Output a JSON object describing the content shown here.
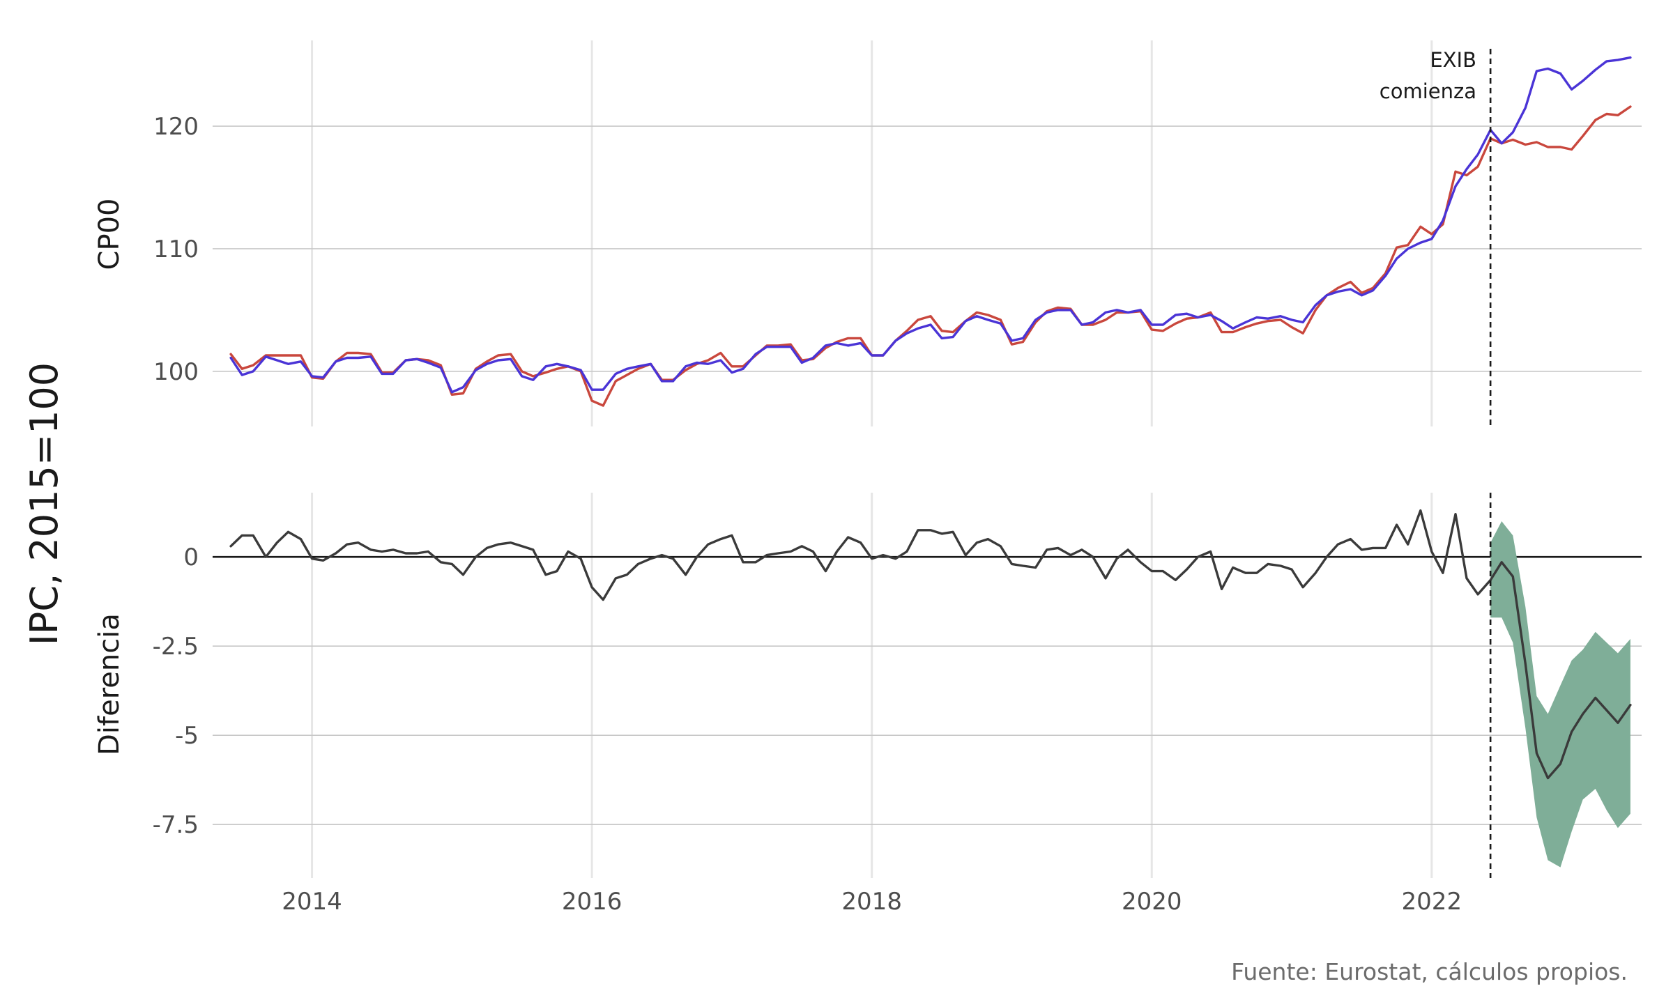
{
  "chart_data": {
    "type": "line",
    "ylabel": "IPC, 2015=100",
    "caption": "Fuente: Eurostat, cálculos propios.",
    "x_ticks": [
      2014,
      2016,
      2018,
      2020,
      2022
    ],
    "xlim": [
      2013.29,
      2023.5
    ],
    "event": {
      "x": 2022.42,
      "label_lines": [
        "EXIB",
        "comienza"
      ]
    },
    "colors": {
      "serie_roja": "#c9473d",
      "serie_azul": "#4a34d6",
      "diferencia": "#3a3a3a",
      "banda": "#7fae98"
    },
    "panels": [
      {
        "name": "top",
        "ylabel": "CP00",
        "ylim": [
          95.5,
          127
        ],
        "y_ticks": [
          100,
          110,
          120
        ],
        "y_tick_labels": [
          "100",
          "110",
          "120"
        ],
        "series": [
          {
            "color": "#c9473d",
            "x": [
              2013.42,
              2013.5,
              2013.58,
              2013.67,
              2013.75,
              2013.83,
              2013.92,
              2014.0,
              2014.08,
              2014.17,
              2014.25,
              2014.33,
              2014.42,
              2014.5,
              2014.58,
              2014.67,
              2014.75,
              2014.83,
              2014.92,
              2015.0,
              2015.08,
              2015.17,
              2015.25,
              2015.33,
              2015.42,
              2015.5,
              2015.58,
              2015.67,
              2015.75,
              2015.83,
              2015.92,
              2016.0,
              2016.08,
              2016.17,
              2016.25,
              2016.33,
              2016.42,
              2016.5,
              2016.58,
              2016.67,
              2016.75,
              2016.83,
              2016.92,
              2017.0,
              2017.08,
              2017.17,
              2017.25,
              2017.33,
              2017.42,
              2017.5,
              2017.58,
              2017.67,
              2017.75,
              2017.83,
              2017.92,
              2018.0,
              2018.08,
              2018.17,
              2018.25,
              2018.33,
              2018.42,
              2018.5,
              2018.58,
              2018.67,
              2018.75,
              2018.83,
              2018.92,
              2019.0,
              2019.08,
              2019.17,
              2019.25,
              2019.33,
              2019.42,
              2019.5,
              2019.58,
              2019.67,
              2019.75,
              2019.83,
              2019.92,
              2020.0,
              2020.08,
              2020.17,
              2020.25,
              2020.33,
              2020.42,
              2020.5,
              2020.58,
              2020.67,
              2020.75,
              2020.83,
              2020.92,
              2021.0,
              2021.08,
              2021.17,
              2021.25,
              2021.33,
              2021.42,
              2021.5,
              2021.58,
              2021.67,
              2021.75,
              2021.83,
              2021.92,
              2022.0,
              2022.08,
              2022.17,
              2022.25,
              2022.33,
              2022.42,
              2022.5,
              2022.58,
              2022.67,
              2022.75,
              2022.83,
              2022.92,
              2023.0,
              2023.08,
              2023.17,
              2023.25,
              2023.33,
              2023.42
            ],
            "values": [
              101.4,
              100.2,
              100.5,
              101.3,
              101.3,
              101.3,
              101.3,
              99.5,
              99.4,
              100.8,
              101.5,
              101.5,
              101.4,
              99.9,
              99.9,
              100.9,
              101.0,
              100.9,
              100.5,
              98.1,
              98.2,
              100.2,
              100.8,
              101.3,
              101.4,
              100.0,
              99.6,
              99.9,
              100.2,
              100.4,
              100.0,
              97.6,
              97.2,
              99.2,
              99.7,
              100.2,
              100.6,
              99.3,
              99.3,
              100.1,
              100.6,
              100.9,
              101.5,
              100.4,
              100.4,
              101.3,
              102.1,
              102.1,
              102.2,
              100.9,
              101.0,
              101.9,
              102.4,
              102.7,
              102.7,
              101.3,
              101.3,
              102.5,
              103.3,
              104.2,
              104.5,
              103.3,
              103.2,
              104.1,
              104.8,
              104.6,
              104.2,
              102.2,
              102.4,
              104.0,
              104.9,
              105.2,
              105.1,
              103.8,
              103.8,
              104.2,
              104.8,
              104.8,
              104.9,
              103.4,
              103.3,
              103.9,
              104.3,
              104.4,
              104.8,
              103.2,
              103.2,
              103.6,
              103.9,
              104.1,
              104.2,
              103.6,
              103.1,
              105.0,
              106.2,
              106.8,
              107.3,
              106.4,
              106.8,
              108.0,
              110.1,
              110.3,
              111.8,
              111.2,
              112.0,
              116.3,
              116.0,
              116.7,
              119.0,
              118.6,
              118.9,
              118.5,
              118.7,
              118.3,
              118.3,
              118.1,
              119.2,
              120.5,
              121.0,
              120.9,
              121.6
            ]
          },
          {
            "color": "#4a34d6",
            "x": [
              2013.42,
              2013.5,
              2013.58,
              2013.67,
              2013.75,
              2013.83,
              2013.92,
              2014.0,
              2014.08,
              2014.17,
              2014.25,
              2014.33,
              2014.42,
              2014.5,
              2014.58,
              2014.67,
              2014.75,
              2014.83,
              2014.92,
              2015.0,
              2015.08,
              2015.17,
              2015.25,
              2015.33,
              2015.42,
              2015.5,
              2015.58,
              2015.67,
              2015.75,
              2015.83,
              2015.92,
              2016.0,
              2016.08,
              2016.17,
              2016.25,
              2016.33,
              2016.42,
              2016.5,
              2016.58,
              2016.67,
              2016.75,
              2016.83,
              2016.92,
              2017.0,
              2017.08,
              2017.17,
              2017.25,
              2017.33,
              2017.42,
              2017.5,
              2017.58,
              2017.67,
              2017.75,
              2017.83,
              2017.92,
              2018.0,
              2018.08,
              2018.17,
              2018.25,
              2018.33,
              2018.42,
              2018.5,
              2018.58,
              2018.67,
              2018.75,
              2018.83,
              2018.92,
              2019.0,
              2019.08,
              2019.17,
              2019.25,
              2019.33,
              2019.42,
              2019.5,
              2019.58,
              2019.67,
              2019.75,
              2019.83,
              2019.92,
              2020.0,
              2020.08,
              2020.17,
              2020.25,
              2020.33,
              2020.42,
              2020.5,
              2020.58,
              2020.67,
              2020.75,
              2020.83,
              2020.92,
              2021.0,
              2021.08,
              2021.17,
              2021.25,
              2021.33,
              2021.42,
              2021.5,
              2021.58,
              2021.67,
              2021.75,
              2021.83,
              2021.92,
              2022.0,
              2022.08,
              2022.17,
              2022.25,
              2022.33,
              2022.42,
              2022.5,
              2022.58,
              2022.67,
              2022.75,
              2022.83,
              2022.92,
              2023.0,
              2023.08,
              2023.17,
              2023.25,
              2023.33,
              2023.42
            ],
            "values": [
              101.1,
              99.7,
              100.0,
              101.2,
              100.9,
              100.6,
              100.8,
              99.6,
              99.5,
              100.8,
              101.1,
              101.1,
              101.2,
              99.8,
              99.8,
              100.9,
              101.0,
              100.7,
              100.3,
              98.3,
              98.7,
              100.1,
              100.6,
              100.9,
              101.0,
              99.6,
              99.3,
              100.4,
              100.6,
              100.4,
              100.1,
              98.5,
              98.5,
              99.8,
              100.2,
              100.4,
              100.6,
              99.2,
              99.2,
              100.4,
              100.7,
              100.6,
              100.9,
              99.9,
              100.2,
              101.4,
              102.0,
              102.0,
              102.0,
              100.7,
              101.1,
              102.1,
              102.3,
              102.1,
              102.3,
              101.3,
              101.3,
              102.5,
              103.1,
              103.5,
              103.8,
              102.7,
              102.8,
              104.1,
              104.5,
              104.2,
              103.9,
              102.5,
              102.7,
              104.2,
              104.8,
              105.0,
              105.0,
              103.8,
              104.0,
              104.8,
              105.0,
              104.8,
              105.0,
              103.8,
              103.8,
              104.6,
              104.7,
              104.4,
              104.6,
              104.1,
              103.5,
              104.0,
              104.4,
              104.3,
              104.5,
              104.2,
              104.0,
              105.4,
              106.2,
              106.5,
              106.7,
              106.2,
              106.6,
              107.8,
              109.2,
              110.0,
              110.5,
              110.8,
              112.3,
              115.1,
              116.5,
              117.7,
              119.7,
              118.6,
              119.5,
              121.5,
              124.5,
              124.7,
              124.3,
              123.0,
              123.7,
              124.6,
              125.3,
              125.4,
              125.6
            ]
          }
        ]
      },
      {
        "name": "bottom",
        "ylabel": "Diferencia",
        "ylim": [
          -9,
          1.8
        ],
        "y_ticks": [
          0,
          -2.5,
          -5,
          -7.5
        ],
        "y_tick_labels": [
          "0",
          "-2.5",
          "-5",
          "-7.5"
        ],
        "series": [
          {
            "color": "#3a3a3a",
            "x": [
              2013.42,
              2013.5,
              2013.58,
              2013.67,
              2013.75,
              2013.83,
              2013.92,
              2014.0,
              2014.08,
              2014.17,
              2014.25,
              2014.33,
              2014.42,
              2014.5,
              2014.58,
              2014.67,
              2014.75,
              2014.83,
              2014.92,
              2015.0,
              2015.08,
              2015.17,
              2015.25,
              2015.33,
              2015.42,
              2015.5,
              2015.58,
              2015.67,
              2015.75,
              2015.83,
              2015.92,
              2016.0,
              2016.08,
              2016.17,
              2016.25,
              2016.33,
              2016.42,
              2016.5,
              2016.58,
              2016.67,
              2016.75,
              2016.83,
              2016.92,
              2017.0,
              2017.08,
              2017.17,
              2017.25,
              2017.33,
              2017.42,
              2017.5,
              2017.58,
              2017.67,
              2017.75,
              2017.83,
              2017.92,
              2018.0,
              2018.08,
              2018.17,
              2018.25,
              2018.33,
              2018.42,
              2018.5,
              2018.58,
              2018.67,
              2018.75,
              2018.83,
              2018.92,
              2019.0,
              2019.08,
              2019.17,
              2019.25,
              2019.33,
              2019.42,
              2019.5,
              2019.58,
              2019.67,
              2019.75,
              2019.83,
              2019.92,
              2020.0,
              2020.08,
              2020.17,
              2020.25,
              2020.33,
              2020.42,
              2020.5,
              2020.58,
              2020.67,
              2020.75,
              2020.83,
              2020.92,
              2021.0,
              2021.08,
              2021.17,
              2021.25,
              2021.33,
              2021.42,
              2021.5,
              2021.58,
              2021.67,
              2021.75,
              2021.83,
              2021.92,
              2022.0,
              2022.08,
              2022.17,
              2022.25,
              2022.33,
              2022.42,
              2022.5,
              2022.58,
              2022.67,
              2022.75,
              2022.83,
              2022.92,
              2023.0,
              2023.08,
              2023.17,
              2023.25,
              2023.33,
              2023.42
            ],
            "values": [
              0.3,
              0.6,
              0.6,
              0.0,
              0.4,
              0.7,
              0.5,
              -0.05,
              -0.1,
              0.1,
              0.35,
              0.4,
              0.2,
              0.15,
              0.2,
              0.1,
              0.1,
              0.15,
              -0.15,
              -0.2,
              -0.5,
              0.0,
              0.25,
              0.35,
              0.4,
              0.3,
              0.2,
              -0.5,
              -0.4,
              0.15,
              -0.05,
              -0.85,
              -1.2,
              -0.6,
              -0.5,
              -0.2,
              -0.05,
              0.05,
              -0.05,
              -0.5,
              0.0,
              0.35,
              0.5,
              0.6,
              -0.15,
              -0.15,
              0.05,
              0.1,
              0.15,
              0.3,
              0.15,
              -0.4,
              0.15,
              0.55,
              0.4,
              -0.05,
              0.05,
              -0.05,
              0.15,
              0.75,
              0.75,
              0.65,
              0.7,
              0.05,
              0.4,
              0.5,
              0.3,
              -0.2,
              -0.25,
              -0.3,
              0.2,
              0.25,
              0.05,
              0.2,
              0.0,
              -0.6,
              -0.05,
              0.2,
              -0.15,
              -0.4,
              -0.4,
              -0.65,
              -0.35,
              0.0,
              0.15,
              -0.9,
              -0.3,
              -0.45,
              -0.45,
              -0.2,
              -0.25,
              -0.35,
              -0.85,
              -0.45,
              0.0,
              0.35,
              0.5,
              0.2,
              0.25,
              0.25,
              0.9,
              0.35,
              1.3,
              0.15,
              -0.45,
              1.2,
              -0.6,
              -1.05,
              -0.65,
              -0.15,
              -0.55,
              -3.0,
              -5.5,
              -6.2,
              -5.8,
              -4.9,
              -4.4,
              -3.95,
              -4.3,
              -4.65,
              -4.15
            ]
          }
        ],
        "band": {
          "color": "#7fae98",
          "x": [
            2022.42,
            2022.5,
            2022.58,
            2022.67,
            2022.75,
            2022.83,
            2022.92,
            2023.0,
            2023.08,
            2023.17,
            2023.25,
            2023.33,
            2023.42
          ],
          "lower": [
            -1.7,
            -1.7,
            -2.4,
            -4.8,
            -7.3,
            -8.5,
            -8.7,
            -7.7,
            -6.8,
            -6.5,
            -7.1,
            -7.6,
            -7.2
          ],
          "upper": [
            0.4,
            1.0,
            0.6,
            -1.4,
            -3.9,
            -4.4,
            -3.6,
            -2.9,
            -2.6,
            -2.1,
            -2.4,
            -2.7,
            -2.3
          ]
        }
      }
    ]
  }
}
